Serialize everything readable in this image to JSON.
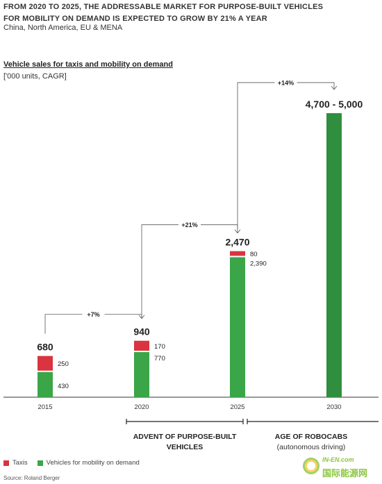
{
  "header": {
    "title_line1": "FROM 2020 TO 2025, THE ADDRESSABLE MARKET FOR PURPOSE-BUILT VEHICLES",
    "title_line2": "FOR MOBILITY ON DEMAND IS EXPECTED TO GROW BY 21% A YEAR",
    "subtitle": "China, North America, EU & MENA"
  },
  "chart_data": {
    "type": "bar",
    "stacked": true,
    "title": "Vehicle sales for taxis and mobility on demand",
    "unit": "['000 units, CAGR]",
    "categories": [
      "2015",
      "2020",
      "2025",
      "2030"
    ],
    "series": [
      {
        "name": "Vehicles for mobility on demand",
        "color": "#3aa648",
        "values": [
          430,
          770,
          2390,
          4850
        ]
      },
      {
        "name": "Taxis",
        "color": "#d9343f",
        "values": [
          250,
          170,
          80,
          0
        ]
      }
    ],
    "totals": [
      "680",
      "940",
      "2,470",
      "4,700 - 5,000"
    ],
    "segment_labels": [
      {
        "category": "2015",
        "taxi": "250",
        "mod": "430"
      },
      {
        "category": "2020",
        "taxi": "170",
        "mod": "770"
      },
      {
        "category": "2025",
        "taxi": "80",
        "mod": "2,390"
      }
    ],
    "cagr": [
      {
        "from": "2015",
        "to": "2020",
        "label": "+7%"
      },
      {
        "from": "2020",
        "to": "2025",
        "label": "+21%"
      },
      {
        "from": "2025",
        "to": "2030",
        "label": "+14%"
      }
    ],
    "periods": [
      {
        "label_line1": "ADVENT OF PURPOSE-BUILT",
        "label_line2": "VEHICLES",
        "from": "2015",
        "to": "2025"
      },
      {
        "label_line1": "AGE OF ROBOCABS",
        "label_line2": "(autonomous driving)",
        "from": "2025",
        "to": "2030"
      }
    ],
    "ylim": [
      0,
      5200
    ],
    "highlight_color": "#2f8f3e"
  },
  "legend": {
    "taxi_label": "Taxis",
    "mod_label": "Vehicles for mobility on demand"
  },
  "source": "Source: Roland Berger",
  "watermark": {
    "latin": "IN-EN.com",
    "cn": "国际能源网"
  }
}
